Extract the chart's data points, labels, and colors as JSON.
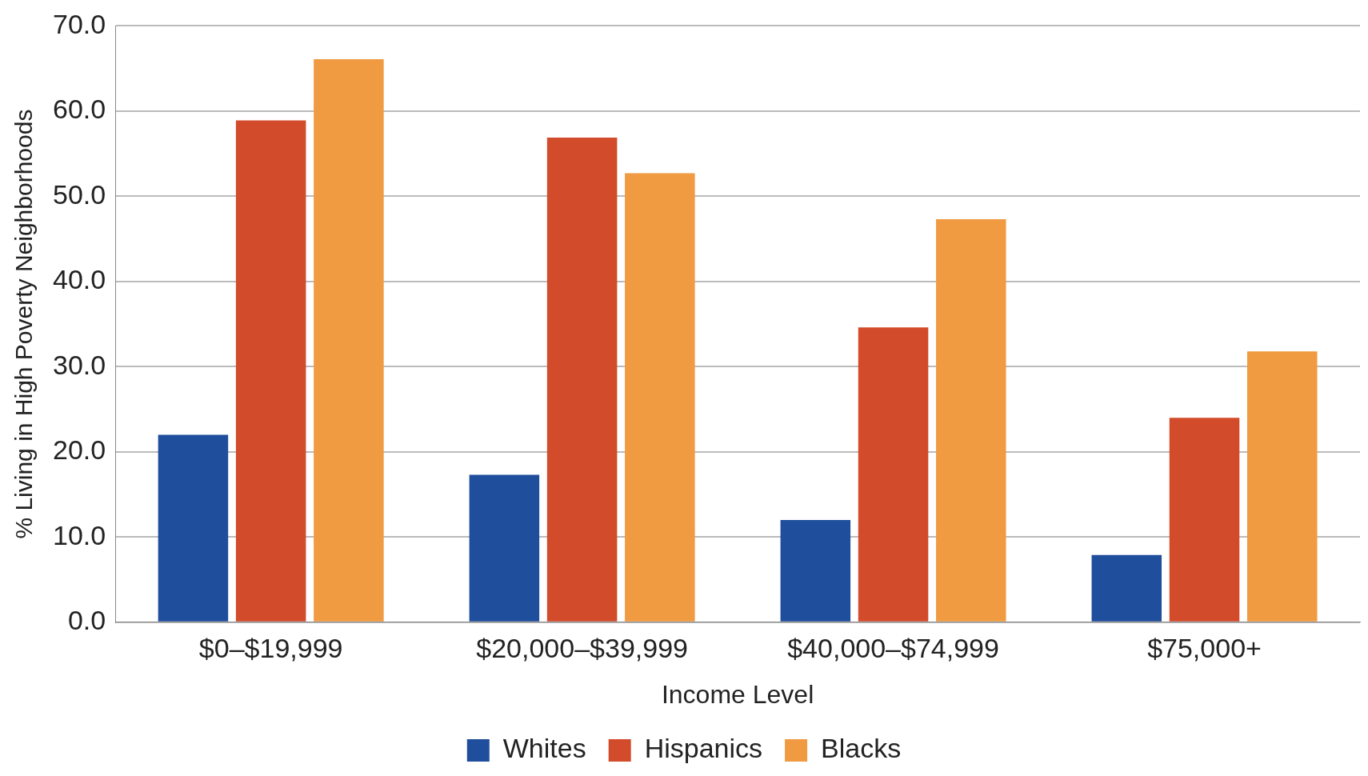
{
  "chart_data": {
    "type": "bar",
    "xlabel": "Income Level",
    "ylabel": "% Living in High Poverty Neighborhoods",
    "categories": [
      "$0–$19,999",
      "$20,000–$39,999",
      "$40,000–$74,999",
      "$75,000+"
    ],
    "series": [
      {
        "name": "Whites",
        "color": "#1f4e9c",
        "values": [
          22.0,
          17.3,
          12.0,
          7.9
        ]
      },
      {
        "name": "Hispanics",
        "color": "#d24b2a",
        "values": [
          58.9,
          56.9,
          34.6,
          24.0
        ]
      },
      {
        "name": "Blacks",
        "color": "#f09a41",
        "values": [
          66.1,
          52.7,
          47.3,
          31.8
        ]
      }
    ],
    "ylim": [
      0,
      70
    ],
    "yticks": [
      {
        "value": 0,
        "label": "0.0"
      },
      {
        "value": 10,
        "label": "10.0"
      },
      {
        "value": 20,
        "label": "20.0"
      },
      {
        "value": 30,
        "label": "30.0"
      },
      {
        "value": 40,
        "label": "40.0"
      },
      {
        "value": 50,
        "label": "50.0"
      },
      {
        "value": 60,
        "label": "60.0"
      },
      {
        "value": 70,
        "label": "70.0"
      }
    ],
    "grid": "y",
    "legend": "bottom"
  }
}
